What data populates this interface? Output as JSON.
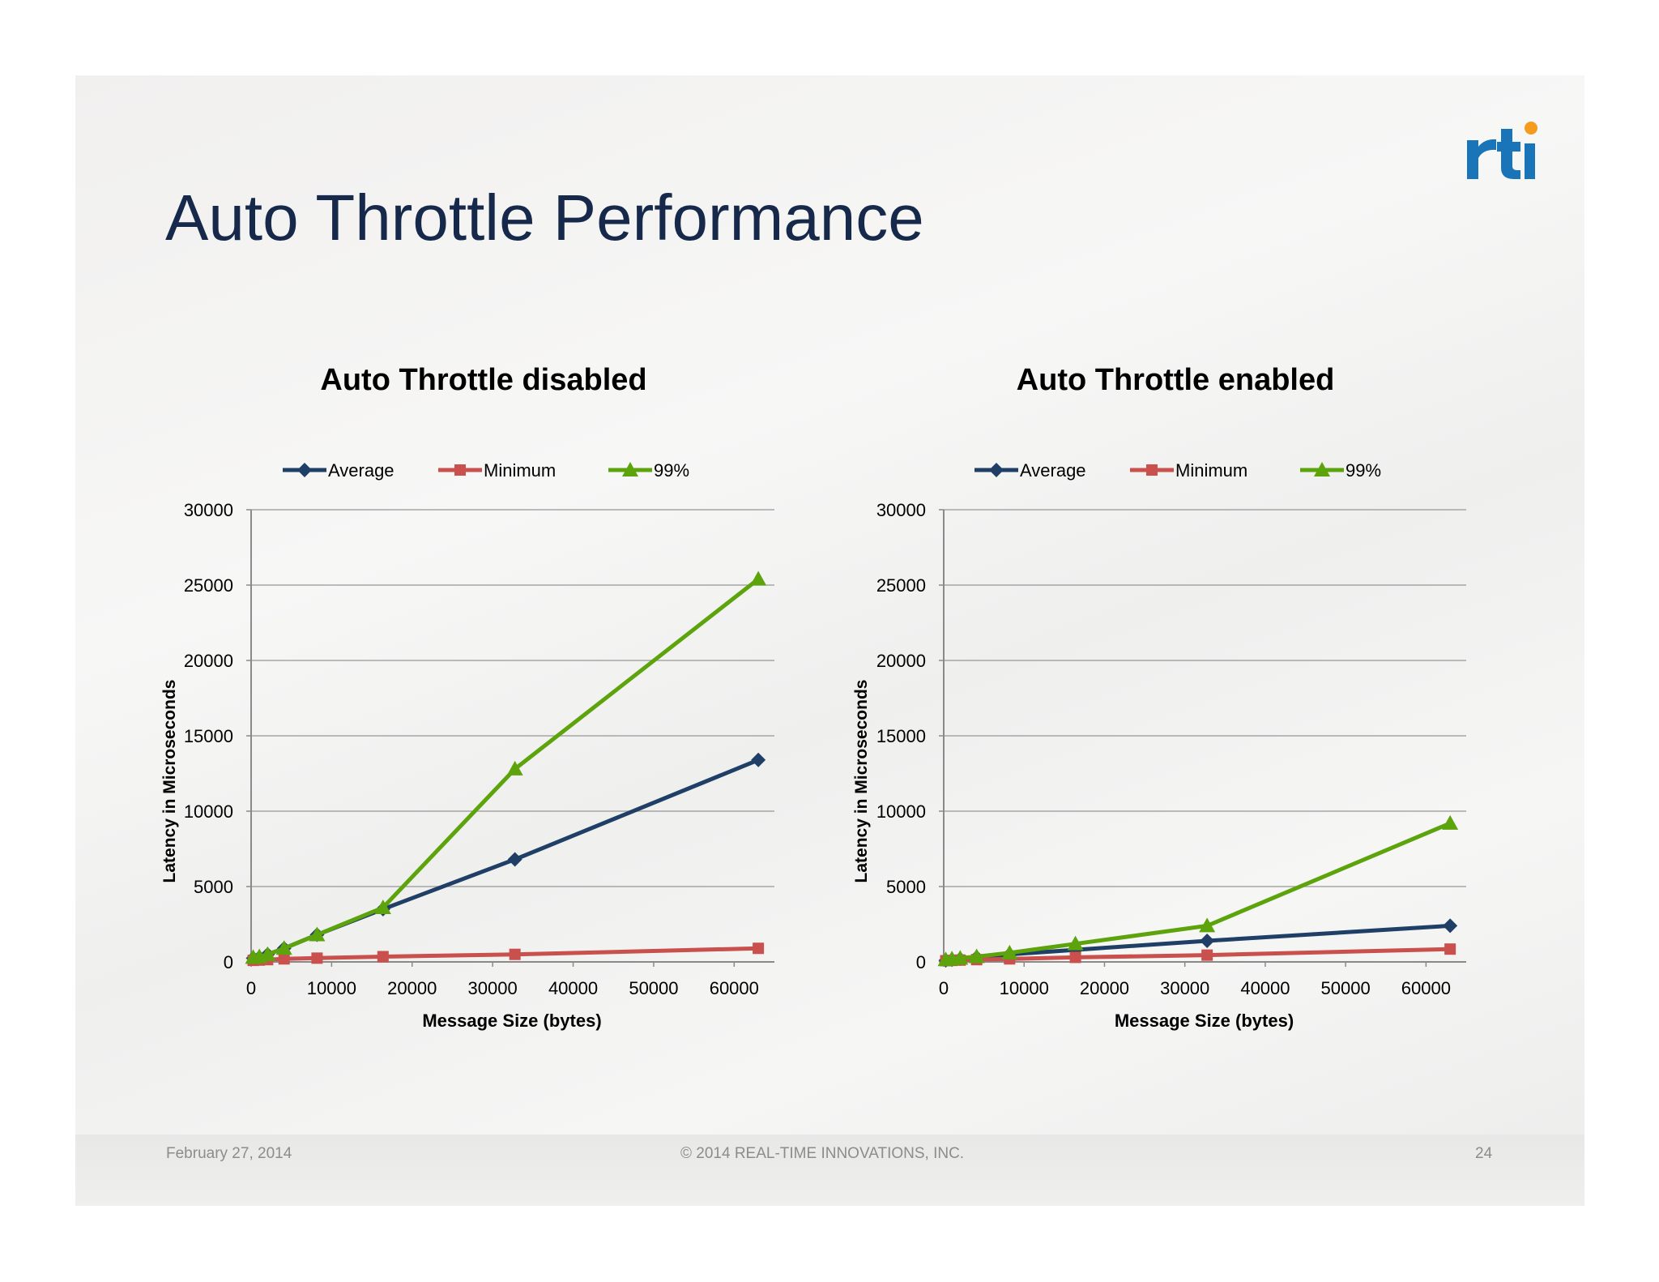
{
  "slide": {
    "title": "Auto Throttle Performance",
    "footer": {
      "date": "February 27, 2014",
      "copyright": "© 2014 REAL-TIME INNOVATIONS, INC.",
      "page": "24"
    },
    "logo_text": "rti",
    "colors": {
      "title": "#16294a",
      "logo_blue": "#1a74b8",
      "logo_orange": "#f39c1f"
    }
  },
  "chart_data": [
    {
      "type": "line",
      "title": "Auto Throttle disabled",
      "xlabel": "Message Size (bytes)",
      "ylabel": "Latency in Microseconds",
      "xlim": [
        0,
        65000
      ],
      "ylim": [
        0,
        30000
      ],
      "xticks": [
        "0",
        "10000",
        "20000",
        "30000",
        "40000",
        "50000",
        "60000"
      ],
      "yticks": [
        "0",
        "5000",
        "10000",
        "15000",
        "20000",
        "25000",
        "30000"
      ],
      "legend_position": "top",
      "grid": true,
      "x": [
        256,
        1024,
        2048,
        4096,
        8192,
        16384,
        32768,
        63000
      ],
      "series": [
        {
          "name": "Average",
          "color": "#1f3f66",
          "marker": "diamond",
          "values": [
            250,
            300,
            500,
            900,
            1800,
            3500,
            6800,
            13400
          ]
        },
        {
          "name": "Minimum",
          "color": "#c9504c",
          "marker": "square",
          "values": [
            100,
            120,
            150,
            200,
            250,
            350,
            500,
            900
          ]
        },
        {
          "name": "99%",
          "color": "#5ca30c",
          "marker": "triangle",
          "values": [
            300,
            350,
            500,
            900,
            1800,
            3600,
            12800,
            25400
          ]
        }
      ]
    },
    {
      "type": "line",
      "title": "Auto Throttle enabled",
      "xlabel": "Message Size (bytes)",
      "ylabel": "Latency in Microseconds",
      "xlim": [
        0,
        65000
      ],
      "ylim": [
        0,
        30000
      ],
      "xticks": [
        "0",
        "10000",
        "20000",
        "30000",
        "40000",
        "50000",
        "60000"
      ],
      "yticks": [
        "0",
        "5000",
        "10000",
        "15000",
        "20000",
        "25000",
        "30000"
      ],
      "legend_position": "top",
      "grid": true,
      "x": [
        256,
        1024,
        2048,
        4096,
        8192,
        16384,
        32768,
        63000
      ],
      "series": [
        {
          "name": "Average",
          "color": "#1f3f66",
          "marker": "diamond",
          "values": [
            100,
            150,
            200,
            300,
            500,
            800,
            1400,
            2400
          ]
        },
        {
          "name": "Minimum",
          "color": "#c9504c",
          "marker": "square",
          "values": [
            80,
            100,
            120,
            150,
            200,
            300,
            450,
            850
          ]
        },
        {
          "name": "99%",
          "color": "#5ca30c",
          "marker": "triangle",
          "values": [
            150,
            200,
            250,
            350,
            600,
            1200,
            2400,
            9200
          ]
        }
      ]
    }
  ]
}
